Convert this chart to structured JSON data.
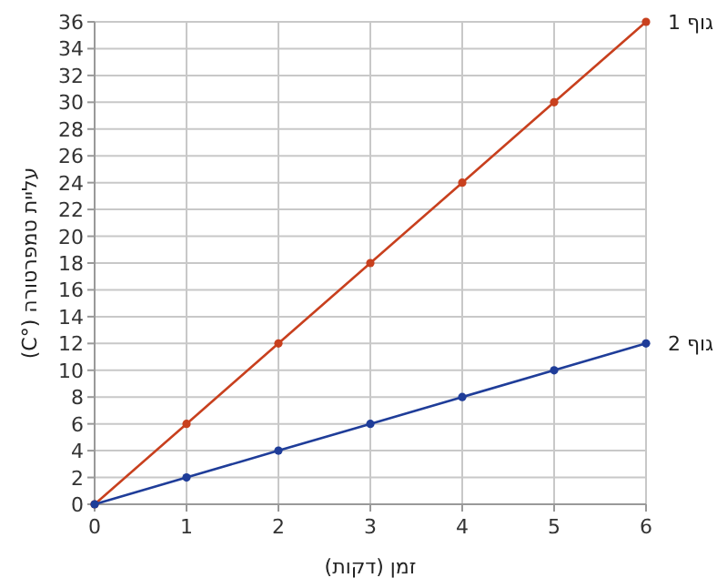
{
  "chart_data": {
    "type": "line",
    "xlabel": "זמן (דקות)",
    "ylabel": "עליית טמפרטורה (°C)",
    "x": [
      0,
      1,
      2,
      3,
      4,
      5,
      6
    ],
    "series": [
      {
        "name": "גוף 1",
        "color": "#c8401e",
        "values": [
          0,
          6,
          12,
          18,
          24,
          30,
          36
        ]
      },
      {
        "name": "גוף 2",
        "color": "#1f3d99",
        "values": [
          0,
          2,
          4,
          6,
          8,
          10,
          12
        ]
      }
    ],
    "xlim": [
      0,
      6
    ],
    "xticks": [
      0,
      1,
      2,
      3,
      4,
      5,
      6
    ],
    "ylim": [
      0,
      36
    ],
    "yticks": [
      0,
      2,
      4,
      6,
      8,
      10,
      12,
      14,
      16,
      18,
      20,
      22,
      24,
      26,
      28,
      30,
      32,
      34,
      36
    ],
    "grid": true,
    "marker": "circle",
    "line_style": "solid",
    "legend": false
  }
}
